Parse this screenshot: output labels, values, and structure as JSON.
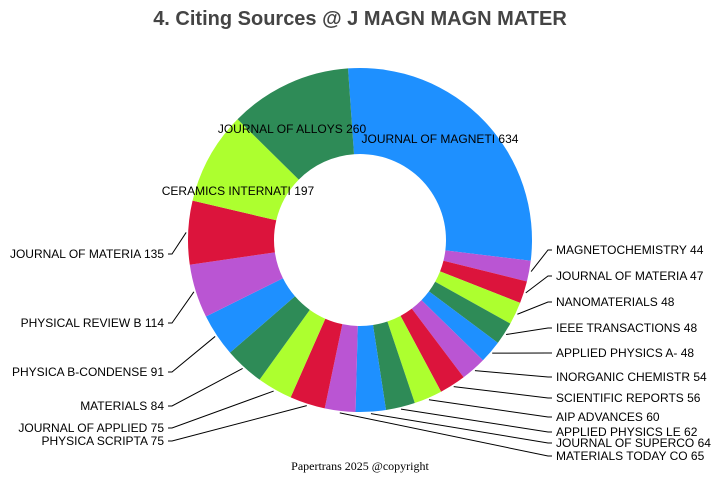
{
  "chart_data": {
    "type": "pie",
    "donut": true,
    "title": "4. Citing Sources @ J MAGN MAGN MATER",
    "footer": "Papertrans 2025 @copyright",
    "slices": [
      {
        "label": "JOURNAL OF MAGNETI",
        "value": 634,
        "color": "#1E90FF"
      },
      {
        "label": "MAGNETOCHEMISTRY",
        "value": 44,
        "color": "#BA55D3"
      },
      {
        "label": "JOURNAL OF MATERIA",
        "value": 47,
        "color": "#DC143C"
      },
      {
        "label": "NANOMATERIALS",
        "value": 48,
        "color": "#ADFF2F"
      },
      {
        "label": "IEEE TRANSACTIONS ",
        "value": 48,
        "color": "#2E8B57"
      },
      {
        "label": "APPLIED PHYSICS A-",
        "value": 48,
        "color": "#1E90FF"
      },
      {
        "label": "INORGANIC CHEMISTR",
        "value": 54,
        "color": "#BA55D3"
      },
      {
        "label": "SCIENTIFIC REPORTS",
        "value": 56,
        "color": "#DC143C"
      },
      {
        "label": "AIP ADVANCES",
        "value": 60,
        "color": "#ADFF2F"
      },
      {
        "label": "APPLIED PHYSICS LE",
        "value": 62,
        "color": "#2E8B57"
      },
      {
        "label": "JOURNAL OF SUPERCO",
        "value": 64,
        "color": "#1E90FF"
      },
      {
        "label": "MATERIALS TODAY CO",
        "value": 65,
        "color": "#BA55D3"
      },
      {
        "label": "PHYSICA SCRIPTA",
        "value": 75,
        "color": "#DC143C"
      },
      {
        "label": "JOURNAL OF APPLIED",
        "value": 75,
        "color": "#ADFF2F"
      },
      {
        "label": "MATERIALS",
        "value": 84,
        "color": "#2E8B57"
      },
      {
        "label": "PHYSICA B-CONDENSE",
        "value": 91,
        "color": "#1E90FF"
      },
      {
        "label": "PHYSICAL REVIEW B",
        "value": 114,
        "color": "#BA55D3"
      },
      {
        "label": "JOURNAL OF MATERIA",
        "value": 135,
        "color": "#DC143C"
      },
      {
        "label": "CERAMICS INTERNATI",
        "value": 197,
        "color": "#ADFF2F"
      },
      {
        "label": "JOURNAL OF ALLOYS ",
        "value": 260,
        "color": "#2E8B57"
      }
    ]
  }
}
